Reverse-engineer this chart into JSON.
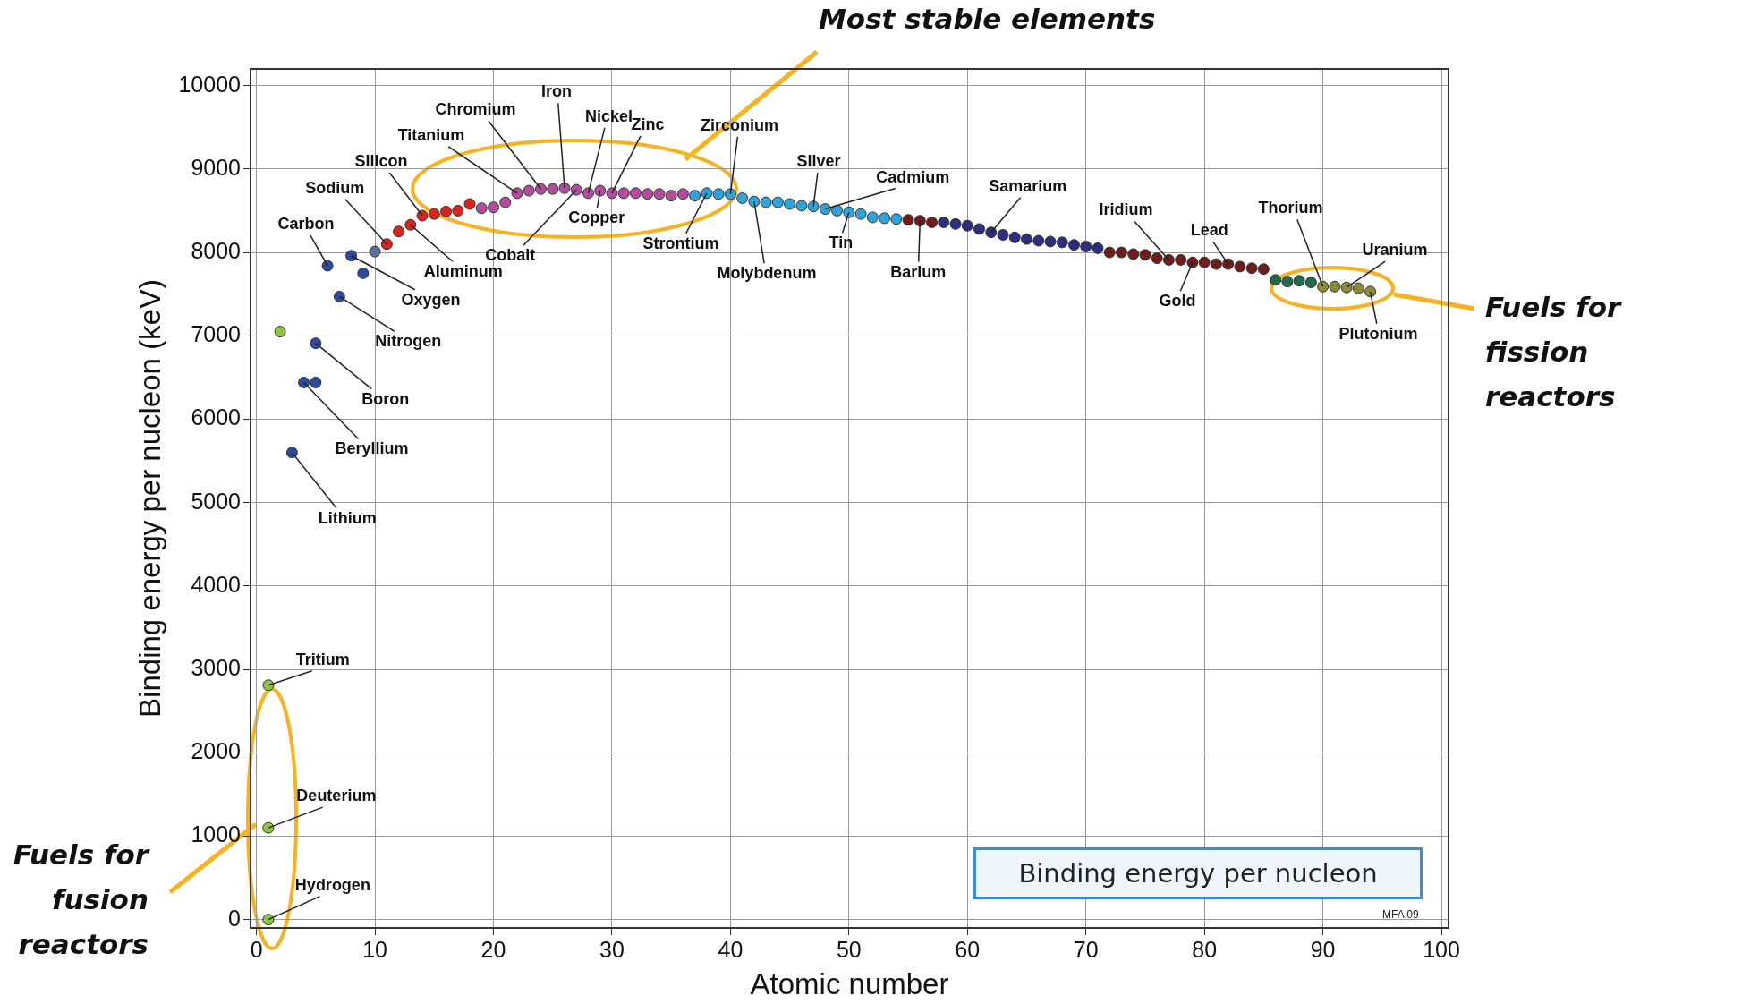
{
  "chart_data": {
    "type": "scatter",
    "xlabel": "Atomic number",
    "ylabel": "Binding energy per nucleon (keV)",
    "xlim": [
      -0.5,
      100.6
    ],
    "ylim": [
      -100,
      10200
    ],
    "xticks": [
      0,
      10,
      20,
      30,
      40,
      50,
      60,
      70,
      80,
      90,
      100
    ],
    "yticks": [
      0,
      1000,
      2000,
      3000,
      4000,
      5000,
      6000,
      7000,
      8000,
      9000,
      10000
    ],
    "grid": true,
    "legend": false,
    "marker": "circle",
    "series": [
      {
        "color": "#8cc63f",
        "x": [
          1,
          1,
          1,
          2
        ],
        "values": [
          0,
          1100,
          2810,
          7050
        ]
      },
      {
        "color": "#2e4a9e",
        "x": [
          3,
          4,
          5,
          5,
          6,
          7,
          8,
          9
        ],
        "values": [
          5600,
          6440,
          6440,
          6910,
          7840,
          7470,
          7960,
          7750
        ]
      },
      {
        "color": "#5b6f9c",
        "x": [
          10
        ],
        "values": [
          8010
        ]
      },
      {
        "color": "#d7261e",
        "x": [
          11,
          12,
          13,
          14,
          15,
          16,
          17,
          18
        ],
        "values": [
          8100,
          8250,
          8330,
          8440,
          8460,
          8490,
          8500,
          8580
        ]
      },
      {
        "color": "#b24c9f",
        "x": [
          19,
          20,
          21,
          22,
          23,
          24,
          25,
          26,
          27,
          28,
          29,
          30,
          31,
          32,
          33,
          34,
          35,
          36
        ],
        "values": [
          8530,
          8540,
          8600,
          8710,
          8740,
          8760,
          8760,
          8770,
          8750,
          8710,
          8740,
          8710,
          8710,
          8710,
          8700,
          8700,
          8680,
          8700
        ]
      },
      {
        "color": "#2ea3d8",
        "x": [
          37,
          38,
          39,
          40,
          41,
          42,
          43,
          44,
          45,
          46,
          47,
          48,
          49,
          50,
          51,
          52,
          53,
          54
        ],
        "values": [
          8680,
          8710,
          8700,
          8700,
          8650,
          8610,
          8600,
          8600,
          8580,
          8560,
          8550,
          8520,
          8500,
          8480,
          8460,
          8420,
          8410,
          8400
        ]
      },
      {
        "color": "#6e1c1c",
        "x": [
          55,
          56,
          57,
          72,
          73,
          74,
          75,
          76,
          77,
          78,
          79,
          80,
          81,
          82,
          83,
          84,
          85
        ],
        "values": [
          8390,
          8380,
          8360,
          8000,
          8000,
          7980,
          7970,
          7930,
          7910,
          7910,
          7880,
          7880,
          7860,
          7860,
          7830,
          7810,
          7800
        ]
      },
      {
        "color": "#2b2f7e",
        "x": [
          58,
          59,
          60,
          61,
          62,
          63,
          64,
          65,
          66,
          67,
          68,
          69,
          70,
          71
        ],
        "values": [
          8360,
          8340,
          8320,
          8280,
          8240,
          8210,
          8180,
          8160,
          8140,
          8130,
          8120,
          8090,
          8070,
          8050
        ]
      },
      {
        "color": "#1f6b4a",
        "x": [
          86,
          87,
          88,
          89
        ],
        "values": [
          7670,
          7650,
          7660,
          7640
        ]
      },
      {
        "color": "#8d8c35",
        "x": [
          90,
          91,
          92,
          93,
          94
        ],
        "values": [
          7590,
          7590,
          7580,
          7570,
          7530
        ]
      }
    ],
    "annotations": [
      "Most stable elements",
      "Fuels for fission reactors",
      "Fuels for fusion reactors",
      "Binding energy per nucleon",
      "MFA 09",
      {
        "text": "Hydrogen",
        "x": 1,
        "y": 0
      },
      {
        "text": "Deuterium",
        "x": 1,
        "y": 1100
      },
      {
        "text": "Tritium",
        "x": 1,
        "y": 2810
      },
      {
        "text": "Lithium",
        "x": 3,
        "y": 5600
      },
      {
        "text": "Beryllium",
        "x": 4,
        "y": 6440
      },
      {
        "text": "Boron",
        "x": 5,
        "y": 6910
      },
      {
        "text": "Carbon",
        "x": 6,
        "y": 7840
      },
      {
        "text": "Nitrogen",
        "x": 7,
        "y": 7470
      },
      {
        "text": "Oxygen",
        "x": 8,
        "y": 7960
      },
      {
        "text": "Sodium",
        "x": 11,
        "y": 8100
      },
      {
        "text": "Aluminum",
        "x": 13,
        "y": 8330
      },
      {
        "text": "Silicon",
        "x": 14,
        "y": 8440
      },
      {
        "text": "Titanium",
        "x": 22,
        "y": 8710
      },
      {
        "text": "Chromium",
        "x": 24,
        "y": 8760
      },
      {
        "text": "Iron",
        "x": 26,
        "y": 8770
      },
      {
        "text": "Cobalt",
        "x": 27,
        "y": 8750
      },
      {
        "text": "Nickel",
        "x": 28,
        "y": 8710
      },
      {
        "text": "Copper",
        "x": 29,
        "y": 8740
      },
      {
        "text": "Zinc",
        "x": 30,
        "y": 8710
      },
      {
        "text": "Zirconium",
        "x": 40,
        "y": 8700
      },
      {
        "text": "Strontium",
        "x": 38,
        "y": 8710
      },
      {
        "text": "Molybdenum",
        "x": 42,
        "y": 8610
      },
      {
        "text": "Silver",
        "x": 47,
        "y": 8550
      },
      {
        "text": "Cadmium",
        "x": 48,
        "y": 8520
      },
      {
        "text": "Tin",
        "x": 50,
        "y": 8480
      },
      {
        "text": "Barium",
        "x": 56,
        "y": 8380
      },
      {
        "text": "Samarium",
        "x": 62,
        "y": 8240
      },
      {
        "text": "Iridium",
        "x": 77,
        "y": 7910
      },
      {
        "text": "Gold",
        "x": 79,
        "y": 7880
      },
      {
        "text": "Lead",
        "x": 82,
        "y": 7860
      },
      {
        "text": "Thorium",
        "x": 90,
        "y": 7590
      },
      {
        "text": "Uranium",
        "x": 92,
        "y": 7580
      },
      {
        "text": "Plutonium",
        "x": 94,
        "y": 7530
      }
    ]
  }
}
